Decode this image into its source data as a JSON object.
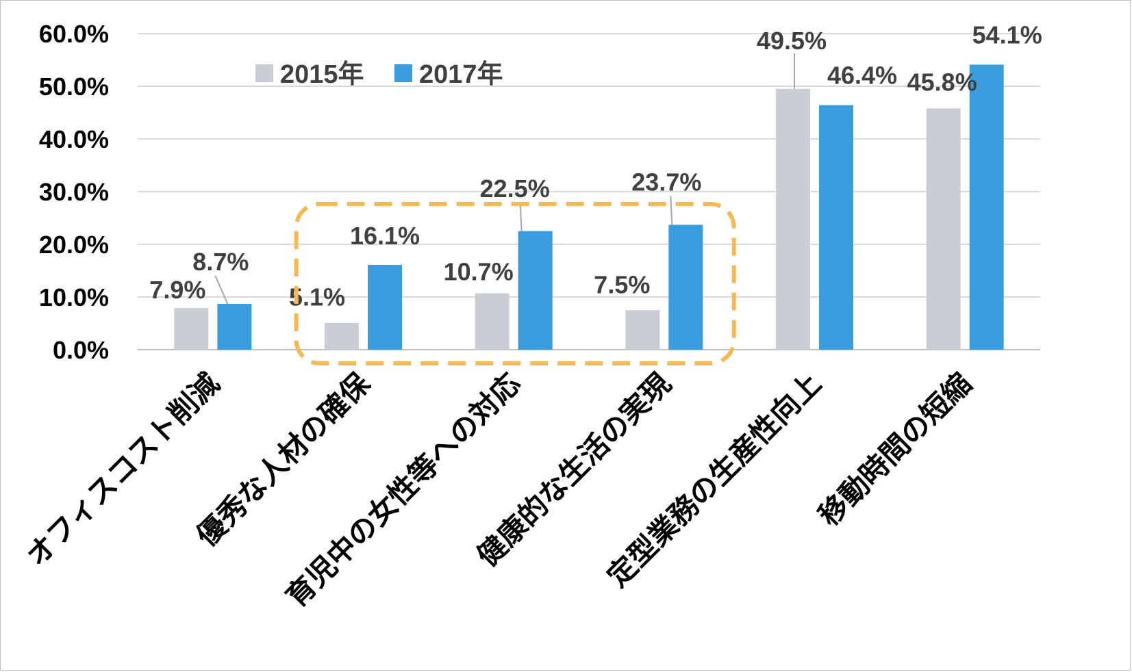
{
  "chart_data": {
    "type": "bar",
    "categories": [
      "オフィスコスト削減",
      "優秀な人材の確保",
      "育児中の女性等への対応",
      "健康的な生活の実現",
      "定型業務の生産性向上",
      "移動時間の短縮"
    ],
    "series": [
      {
        "name": "2015年",
        "values": [
          7.9,
          5.1,
          10.7,
          7.5,
          49.5,
          45.8
        ],
        "labels": [
          "7.9%",
          "5.1%",
          "10.7%",
          "7.5%",
          "49.5%",
          "45.8%"
        ],
        "color": "#c8ced3"
      },
      {
        "name": "2017年",
        "values": [
          8.7,
          16.1,
          22.5,
          23.7,
          46.4,
          54.1
        ],
        "labels": [
          "8.7%",
          "16.1%",
          "22.5%",
          "23.7%",
          "46.4%",
          "54.1%"
        ],
        "color": "#3a9ede"
      }
    ],
    "y_ticks": [
      "0.0%",
      "10.0%",
      "20.0%",
      "30.0%",
      "40.0%",
      "50.0%",
      "60.0%"
    ],
    "ylim": [
      0,
      60
    ],
    "grid": true,
    "legend": "top-left",
    "highlight": {
      "from_category": 1,
      "to_category": 3,
      "color": "#f5b94f",
      "style": "dashed"
    },
    "colors": {
      "gridline": "#d9d9d9",
      "axis": "#bfbfbf"
    }
  }
}
